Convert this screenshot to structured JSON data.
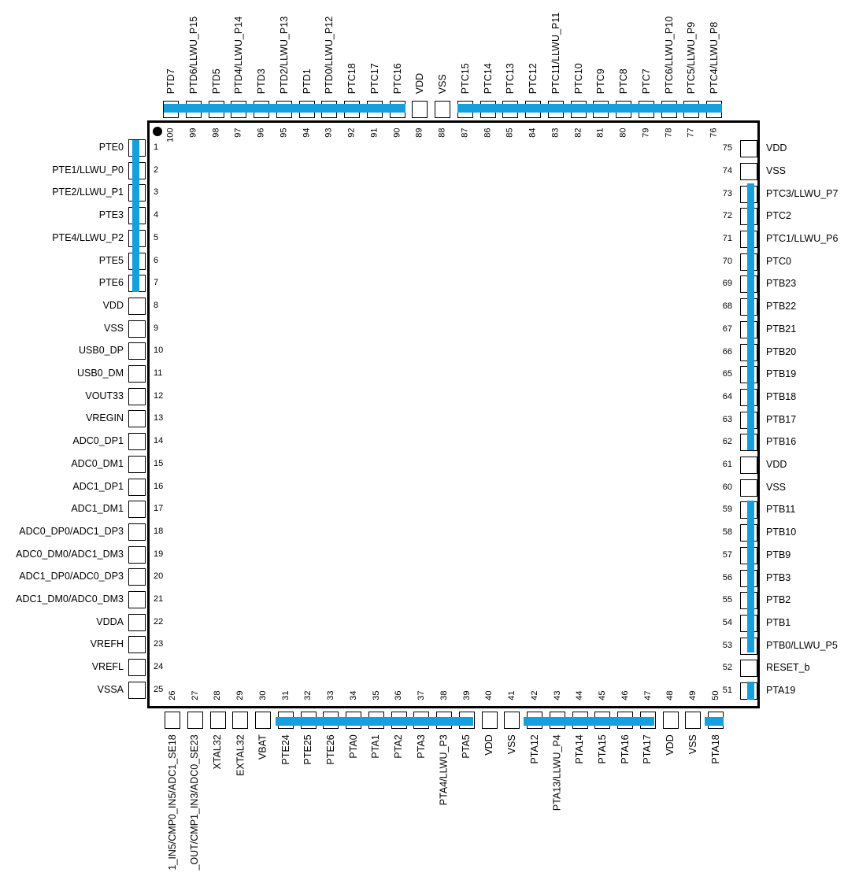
{
  "pins": {
    "left": [
      "PTE0",
      "PTE1/LLWU_P0",
      "PTE2/LLWU_P1",
      "PTE3",
      "PTE4/LLWU_P2",
      "PTE5",
      "PTE6",
      "VDD",
      "VSS",
      "USB0_DP",
      "USB0_DM",
      "VOUT33",
      "VREGIN",
      "ADC0_DP1",
      "ADC0_DM1",
      "ADC1_DP1",
      "ADC1_DM1",
      "ADC0_DP0/ADC1_DP3",
      "ADC0_DM0/ADC1_DM3",
      "ADC1_DP0/ADC0_DP3",
      "ADC1_DM0/ADC0_DM3",
      "VDDA",
      "VREFH",
      "VREFL",
      "VSSA"
    ],
    "left_numbers": [
      "1",
      "2",
      "3",
      "4",
      "5",
      "6",
      "7",
      "8",
      "9",
      "10",
      "11",
      "12",
      "13",
      "14",
      "15",
      "16",
      "17",
      "18",
      "19",
      "20",
      "21",
      "22",
      "23",
      "24",
      "25"
    ],
    "bottom": [
      "1_IN5/CMP0_IN5/ADC1_SE18",
      "_OUT/CMP1_IN3/ADC0_SE23",
      "XTAL32",
      "EXTAL32",
      "VBAT",
      "PTE24",
      "PTE25",
      "PTE26",
      "PTA0",
      "PTA1",
      "PTA2",
      "PTA3",
      "PTA4/LLWU_P3",
      "PTA5",
      "VDD",
      "VSS",
      "PTA12",
      "PTA13/LLWU_P4",
      "PTA14",
      "PTA15",
      "PTA16",
      "PTA17",
      "VDD",
      "VSS",
      "PTA18"
    ],
    "bottom_numbers": [
      "26",
      "27",
      "28",
      "29",
      "30",
      "31",
      "32",
      "33",
      "34",
      "35",
      "36",
      "37",
      "38",
      "39",
      "40",
      "41",
      "42",
      "43",
      "44",
      "45",
      "46",
      "47",
      "48",
      "49",
      "50"
    ],
    "right": [
      "PTA19",
      "RESET_b",
      "PTB0/LLWU_P5",
      "PTB1",
      "PTB2",
      "PTB3",
      "PTB9",
      "PTB10",
      "PTB11",
      "VSS",
      "VDD",
      "PTB16",
      "PTB17",
      "PTB18",
      "PTB19",
      "PTB20",
      "PTB21",
      "PTB22",
      "PTB23",
      "PTC0",
      "PTC1/LLWU_P6",
      "PTC2",
      "PTC3/LLWU_P7",
      "VSS",
      "VDD"
    ],
    "right_numbers": [
      "51",
      "52",
      "53",
      "54",
      "55",
      "56",
      "57",
      "58",
      "59",
      "60",
      "61",
      "62",
      "63",
      "64",
      "65",
      "66",
      "67",
      "68",
      "69",
      "70",
      "71",
      "72",
      "73",
      "74",
      "75"
    ],
    "top": [
      "PTC4/LLWU_P8",
      "PTC5/LLWU_P9",
      "PTC6/LLWU_P10",
      "PTC7",
      "PTC8",
      "PTC9",
      "PTC10",
      "PTC11/LLWU_P11",
      "PTC12",
      "PTC13",
      "PTC14",
      "PTC15",
      "VSS",
      "VDD",
      "PTC16",
      "PTC17",
      "PTC18",
      "PTD0/LLWU_P12",
      "PTD1",
      "PTD2/LLWU_P13",
      "PTD3",
      "PTD4/LLWU_P14",
      "PTD5",
      "PTD6/LLWU_P15",
      "PTD7"
    ],
    "top_numbers": [
      "76",
      "77",
      "78",
      "79",
      "80",
      "81",
      "82",
      "83",
      "84",
      "85",
      "86",
      "87",
      "88",
      "89",
      "90",
      "91",
      "92",
      "93",
      "94",
      "95",
      "96",
      "97",
      "98",
      "99",
      "100"
    ]
  },
  "colors": {
    "highlight": "#14a0dc",
    "outline": "#000000"
  }
}
